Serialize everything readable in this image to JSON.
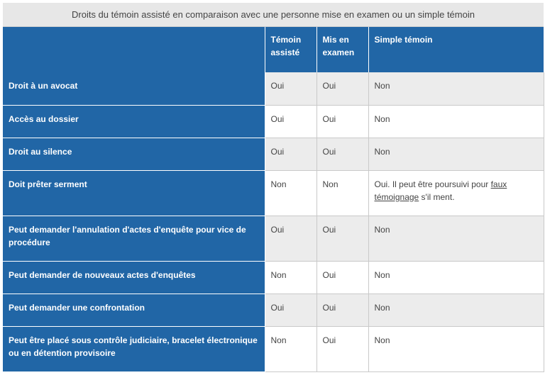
{
  "caption": "Droits du témoin assisté en comparaison avec une personne mise en examen ou un simple témoin",
  "header": {
    "col1_line1": "Témoin",
    "col1_line2": "assisté",
    "col2_line1": "Mis en",
    "col2_line2": "examen",
    "col3": "Simple témoin"
  },
  "rows": [
    {
      "label": "Droit à un avocat",
      "temoin_assiste": "Oui",
      "mis_en_examen": "Oui",
      "simple_temoin": "Non"
    },
    {
      "label": "Accès au dossier",
      "temoin_assiste": "Oui",
      "mis_en_examen": "Oui",
      "simple_temoin": "Non"
    },
    {
      "label": "Droit au silence",
      "temoin_assiste": "Oui",
      "mis_en_examen": "Oui",
      "simple_temoin": "Non"
    },
    {
      "label": "Doit prêter serment",
      "temoin_assiste": "Non",
      "mis_en_examen": "Non",
      "simple_temoin_pre": "Oui. Il peut être poursuivi pour ",
      "simple_temoin_link": "faux témoignage",
      "simple_temoin_post": " s'il ment."
    },
    {
      "label": "Peut demander l'annulation d'actes d'enquête pour vice de procédure",
      "temoin_assiste": "Oui",
      "mis_en_examen": "Oui",
      "simple_temoin": "Non"
    },
    {
      "label": "Peut demander de nouveaux actes d'enquêtes",
      "temoin_assiste": "Non",
      "mis_en_examen": "Oui",
      "simple_temoin": "Non"
    },
    {
      "label": "Peut demander une confrontation",
      "temoin_assiste": "Oui",
      "mis_en_examen": "Oui",
      "simple_temoin": "Non"
    },
    {
      "label": "Peut être placé sous contrôle judiciaire, bracelet électronique ou en détention provisoire",
      "temoin_assiste": "Non",
      "mis_en_examen": "Oui",
      "simple_temoin": "Non"
    }
  ]
}
